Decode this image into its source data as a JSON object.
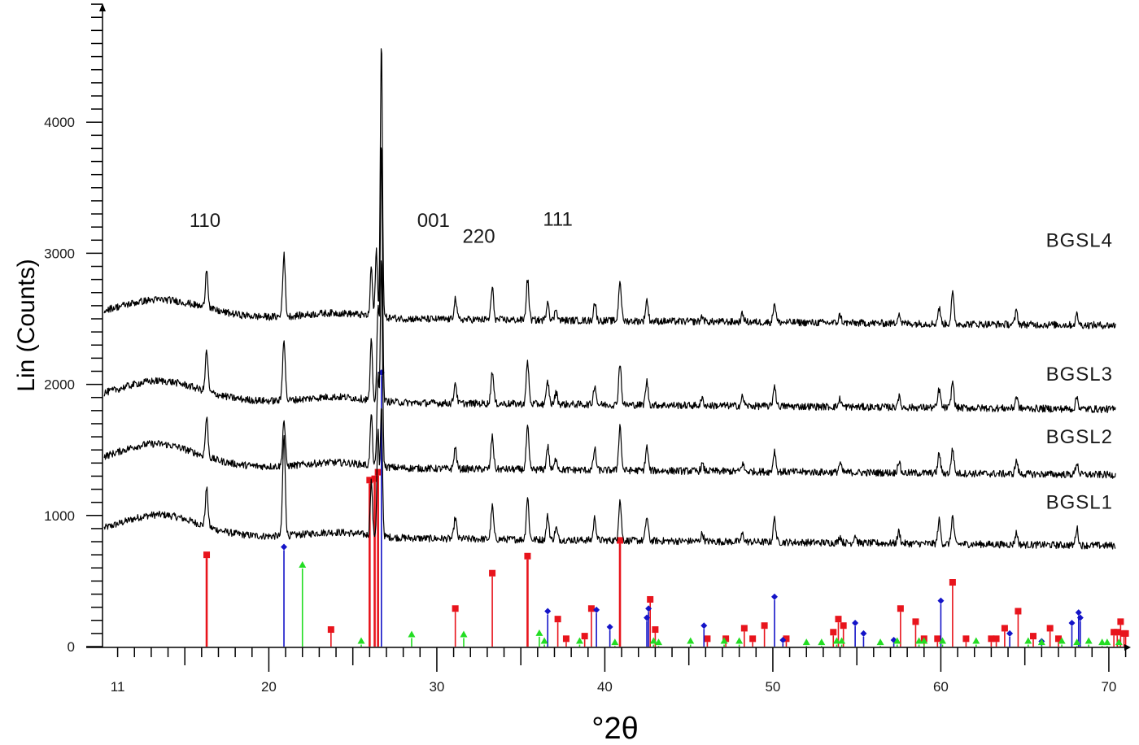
{
  "chart_data": {
    "type": "line",
    "title": "",
    "xlabel": "°2θ",
    "ylabel": "Lin (Counts)",
    "xlim": [
      10.1,
      71.1
    ],
    "ylim": [
      0,
      4900
    ],
    "grid": false,
    "x_ticks": [
      {
        "value": 11,
        "label": "11"
      },
      {
        "value": 20,
        "label": "20"
      },
      {
        "value": 30,
        "label": "30"
      },
      {
        "value": 40,
        "label": "40"
      },
      {
        "value": 50,
        "label": "50"
      },
      {
        "value": 60,
        "label": "60"
      },
      {
        "value": 70,
        "label": "70"
      }
    ],
    "y_ticks": [
      {
        "value": 0,
        "label": "0"
      },
      {
        "value": 1000,
        "label": "1000"
      },
      {
        "value": 2000,
        "label": "2000"
      },
      {
        "value": 3000,
        "label": "3000"
      },
      {
        "value": 4000,
        "label": "4000"
      }
    ],
    "annotations": [
      {
        "text": "110",
        "x": 16.2,
        "y": 3200
      },
      {
        "text": "001",
        "x": 29.8,
        "y": 3200
      },
      {
        "text": "220",
        "x": 32.5,
        "y": 3080
      },
      {
        "text": "111",
        "x": 37.2,
        "y": 3210
      }
    ],
    "series": [
      {
        "name": "BGSL1",
        "label_y": 1050,
        "baseline_start": 850,
        "baseline_end": 770,
        "hump": {
          "center": 13.5,
          "height": 160,
          "width": 3.2
        },
        "peaks": [
          [
            16.3,
            290
          ],
          [
            20.9,
            760
          ],
          [
            26.1,
            420
          ],
          [
            26.5,
            800
          ],
          [
            26.7,
            1000
          ],
          [
            31.1,
            160
          ],
          [
            33.3,
            250
          ],
          [
            35.4,
            320
          ],
          [
            36.6,
            180
          ],
          [
            37.1,
            90
          ],
          [
            39.4,
            170
          ],
          [
            40.9,
            310
          ],
          [
            42.5,
            180
          ],
          [
            45.8,
            60
          ],
          [
            48.2,
            60
          ],
          [
            50.1,
            180
          ],
          [
            54.0,
            50
          ],
          [
            54.9,
            60
          ],
          [
            57.5,
            90
          ],
          [
            59.9,
            180
          ],
          [
            60.7,
            210
          ],
          [
            64.5,
            90
          ],
          [
            68.1,
            130
          ]
        ]
      },
      {
        "name": "BGSL2",
        "label_y": 1550,
        "baseline_start": 1380,
        "baseline_end": 1310,
        "hump": {
          "center": 13.3,
          "height": 170,
          "width": 3.3
        },
        "peaks": [
          [
            16.3,
            300
          ],
          [
            20.9,
            350
          ],
          [
            26.1,
            400
          ],
          [
            26.5,
            700
          ],
          [
            26.7,
            1600
          ],
          [
            31.1,
            160
          ],
          [
            33.3,
            250
          ],
          [
            35.4,
            320
          ],
          [
            36.6,
            180
          ],
          [
            37.1,
            90
          ],
          [
            39.4,
            160
          ],
          [
            40.9,
            340
          ],
          [
            42.5,
            180
          ],
          [
            45.8,
            50
          ],
          [
            48.2,
            60
          ],
          [
            50.1,
            160
          ],
          [
            54.0,
            70
          ],
          [
            57.5,
            90
          ],
          [
            59.9,
            150
          ],
          [
            60.7,
            190
          ],
          [
            64.5,
            100
          ],
          [
            68.1,
            90
          ]
        ]
      },
      {
        "name": "BGSL3",
        "label_y": 2030,
        "baseline_start": 1880,
        "baseline_end": 1810,
        "hump": {
          "center": 13.5,
          "height": 150,
          "width": 3.3
        },
        "peaks": [
          [
            16.3,
            310
          ],
          [
            20.9,
            480
          ],
          [
            26.1,
            450
          ],
          [
            26.5,
            700
          ],
          [
            26.7,
            2000
          ],
          [
            31.1,
            160
          ],
          [
            33.3,
            250
          ],
          [
            35.4,
            320
          ],
          [
            36.6,
            170
          ],
          [
            37.1,
            90
          ],
          [
            39.4,
            150
          ],
          [
            40.9,
            320
          ],
          [
            42.5,
            180
          ],
          [
            45.8,
            50
          ],
          [
            48.2,
            70
          ],
          [
            50.1,
            160
          ],
          [
            54.0,
            60
          ],
          [
            57.5,
            80
          ],
          [
            59.9,
            140
          ],
          [
            60.7,
            200
          ],
          [
            64.5,
            90
          ],
          [
            68.1,
            90
          ]
        ]
      },
      {
        "name": "BGSL4",
        "label_y": 3050,
        "baseline_start": 2520,
        "baseline_end": 2450,
        "hump": {
          "center": 13.6,
          "height": 130,
          "width": 3.4
        },
        "peaks": [
          [
            16.3,
            300
          ],
          [
            20.9,
            470
          ],
          [
            26.1,
            380
          ],
          [
            26.4,
            500
          ],
          [
            26.7,
            2100
          ],
          [
            31.1,
            160
          ],
          [
            33.3,
            240
          ],
          [
            35.4,
            310
          ],
          [
            36.6,
            150
          ],
          [
            37.1,
            90
          ],
          [
            39.4,
            140
          ],
          [
            40.9,
            310
          ],
          [
            42.5,
            160
          ],
          [
            45.8,
            40
          ],
          [
            48.2,
            60
          ],
          [
            50.1,
            150
          ],
          [
            54.0,
            60
          ],
          [
            57.5,
            80
          ],
          [
            59.9,
            120
          ],
          [
            60.7,
            230
          ],
          [
            64.5,
            100
          ],
          [
            68.1,
            80
          ]
        ]
      }
    ],
    "reference_patterns": [
      {
        "name": "phase-red-square",
        "color": "#e8141c",
        "marker": "square",
        "sticks": [
          [
            16.3,
            700
          ],
          [
            23.7,
            130
          ],
          [
            26.0,
            1270
          ],
          [
            26.3,
            1280
          ],
          [
            26.5,
            1330
          ],
          [
            31.1,
            290
          ],
          [
            33.3,
            560
          ],
          [
            35.4,
            690
          ],
          [
            37.2,
            210
          ],
          [
            37.7,
            60
          ],
          [
            38.8,
            80
          ],
          [
            39.2,
            290
          ],
          [
            40.9,
            810
          ],
          [
            42.7,
            360
          ],
          [
            43.0,
            130
          ],
          [
            46.1,
            60
          ],
          [
            47.2,
            60
          ],
          [
            48.3,
            140
          ],
          [
            48.8,
            60
          ],
          [
            49.5,
            160
          ],
          [
            50.8,
            60
          ],
          [
            53.6,
            110
          ],
          [
            53.9,
            210
          ],
          [
            54.2,
            160
          ],
          [
            57.6,
            290
          ],
          [
            58.5,
            190
          ],
          [
            59.0,
            60
          ],
          [
            59.8,
            60
          ],
          [
            60.7,
            490
          ],
          [
            61.5,
            60
          ],
          [
            63.0,
            60
          ],
          [
            63.3,
            60
          ],
          [
            63.8,
            140
          ],
          [
            64.6,
            270
          ],
          [
            65.5,
            80
          ],
          [
            66.5,
            140
          ],
          [
            67.0,
            60
          ],
          [
            70.3,
            110
          ],
          [
            70.5,
            110
          ],
          [
            70.7,
            190
          ],
          [
            70.9,
            100
          ],
          [
            71.0,
            100
          ]
        ]
      },
      {
        "name": "phase-blue-diamond",
        "color": "#1414c8",
        "marker": "diamond",
        "sticks": [
          [
            20.9,
            760
          ],
          [
            26.7,
            2090
          ],
          [
            36.6,
            270
          ],
          [
            39.5,
            280
          ],
          [
            40.3,
            150
          ],
          [
            42.5,
            220
          ],
          [
            42.6,
            290
          ],
          [
            45.9,
            160
          ],
          [
            50.1,
            380
          ],
          [
            50.6,
            50
          ],
          [
            54.9,
            180
          ],
          [
            55.4,
            100
          ],
          [
            57.2,
            50
          ],
          [
            60.0,
            350
          ],
          [
            64.1,
            100
          ],
          [
            66.0,
            40
          ],
          [
            67.8,
            180
          ],
          [
            68.2,
            260
          ],
          [
            68.3,
            220
          ]
        ]
      },
      {
        "name": "phase-green-triangle",
        "color": "#22dd22",
        "marker": "triangle",
        "sticks": [
          [
            22.0,
            620
          ],
          [
            25.5,
            40
          ],
          [
            28.5,
            90
          ],
          [
            31.6,
            90
          ],
          [
            36.1,
            100
          ],
          [
            36.4,
            40
          ],
          [
            38.5,
            40
          ],
          [
            40.6,
            30
          ],
          [
            42.9,
            40
          ],
          [
            43.2,
            30
          ],
          [
            45.1,
            40
          ],
          [
            47.1,
            40
          ],
          [
            48.0,
            40
          ],
          [
            52.0,
            30
          ],
          [
            52.9,
            30
          ],
          [
            53.8,
            40
          ],
          [
            54.1,
            40
          ],
          [
            56.4,
            30
          ],
          [
            57.4,
            40
          ],
          [
            58.7,
            40
          ],
          [
            59.0,
            40
          ],
          [
            60.1,
            40
          ],
          [
            62.1,
            40
          ],
          [
            65.2,
            40
          ],
          [
            66.0,
            30
          ],
          [
            67.2,
            40
          ],
          [
            68.1,
            30
          ],
          [
            68.8,
            40
          ],
          [
            69.6,
            30
          ],
          [
            69.9,
            30
          ],
          [
            70.6,
            30
          ]
        ]
      }
    ]
  }
}
